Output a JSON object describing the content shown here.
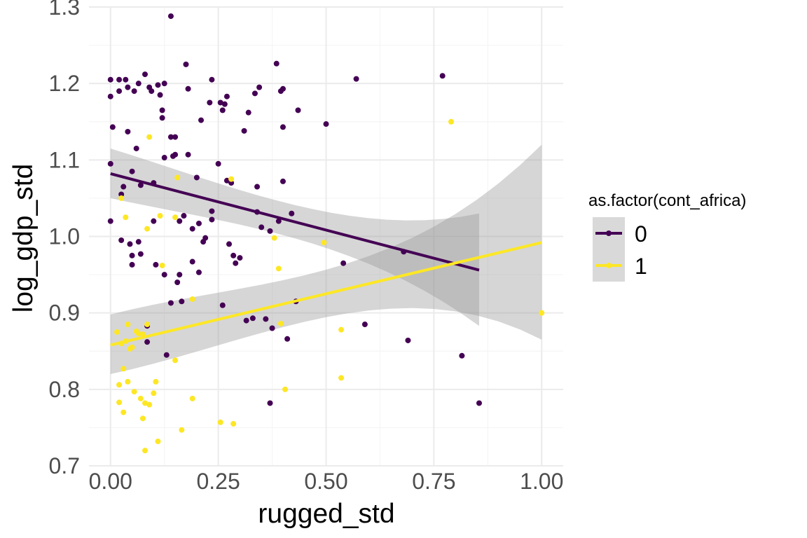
{
  "chart_data": {
    "type": "scatter",
    "xlabel": "rugged_std",
    "ylabel": "log_gdp_std",
    "xlim": [
      -0.05,
      1.05
    ],
    "ylim": [
      0.7,
      1.3
    ],
    "x_ticks": [
      0.0,
      0.25,
      0.5,
      0.75,
      1.0
    ],
    "x_tick_labels": [
      "0.00",
      "0.25",
      "0.50",
      "0.75",
      "1.00"
    ],
    "y_ticks": [
      0.7,
      0.8,
      0.9,
      1.0,
      1.1,
      1.2,
      1.3
    ],
    "y_tick_labels": [
      "0.7",
      "0.8",
      "0.9",
      "1.0",
      "1.1",
      "1.2",
      "1.3"
    ],
    "grid": true,
    "legend": {
      "title": "as.factor(cont_africa)",
      "position": "right"
    },
    "series": [
      {
        "name": "0",
        "color": "#440154",
        "points": [
          [
            0.0,
            1.205
          ],
          [
            0.0,
            1.183
          ],
          [
            0.0,
            1.095
          ],
          [
            0.0,
            1.02
          ],
          [
            0.005,
            1.143
          ],
          [
            0.02,
            1.205
          ],
          [
            0.02,
            1.19
          ],
          [
            0.025,
            1.055
          ],
          [
            0.025,
            0.995
          ],
          [
            0.03,
            1.065
          ],
          [
            0.035,
            1.205
          ],
          [
            0.04,
            1.137
          ],
          [
            0.04,
            1.195
          ],
          [
            0.045,
            0.99
          ],
          [
            0.05,
            1.085
          ],
          [
            0.05,
            0.975
          ],
          [
            0.05,
            0.963
          ],
          [
            0.055,
            1.19
          ],
          [
            0.06,
            1.115
          ],
          [
            0.065,
            1.2
          ],
          [
            0.065,
            0.993
          ],
          [
            0.07,
            0.977
          ],
          [
            0.07,
            1.067
          ],
          [
            0.08,
            1.212
          ],
          [
            0.085,
            0.883
          ],
          [
            0.085,
            0.862
          ],
          [
            0.09,
            1.195
          ],
          [
            0.095,
            1.19
          ],
          [
            0.1,
            1.07
          ],
          [
            0.1,
            1.02
          ],
          [
            0.105,
            0.963
          ],
          [
            0.11,
            1.198
          ],
          [
            0.115,
            1.185
          ],
          [
            0.12,
            1.155
          ],
          [
            0.12,
            1.165
          ],
          [
            0.125,
            1.2
          ],
          [
            0.125,
            1.103
          ],
          [
            0.125,
            0.95
          ],
          [
            0.13,
            0.845
          ],
          [
            0.14,
            1.288
          ],
          [
            0.14,
            1.13
          ],
          [
            0.14,
            0.913
          ],
          [
            0.145,
            1.105
          ],
          [
            0.15,
            1.13
          ],
          [
            0.15,
            1.107
          ],
          [
            0.155,
            0.94
          ],
          [
            0.16,
            1.02
          ],
          [
            0.16,
            0.95
          ],
          [
            0.165,
            0.915
          ],
          [
            0.17,
            1.027
          ],
          [
            0.175,
            1.225
          ],
          [
            0.18,
            1.193
          ],
          [
            0.18,
            1.107
          ],
          [
            0.19,
            1.01
          ],
          [
            0.19,
            0.967
          ],
          [
            0.2,
            1.077
          ],
          [
            0.205,
            0.953
          ],
          [
            0.205,
            1.017
          ],
          [
            0.21,
            1.152
          ],
          [
            0.215,
            0.993
          ],
          [
            0.22,
            0.998
          ],
          [
            0.23,
            1.175
          ],
          [
            0.235,
            1.205
          ],
          [
            0.235,
            1.033
          ],
          [
            0.235,
            1.022
          ],
          [
            0.25,
            1.095
          ],
          [
            0.255,
            1.175
          ],
          [
            0.26,
            0.91
          ],
          [
            0.26,
            1.165
          ],
          [
            0.265,
            1.173
          ],
          [
            0.27,
            1.183
          ],
          [
            0.27,
            1.073
          ],
          [
            0.275,
            0.99
          ],
          [
            0.28,
            1.07
          ],
          [
            0.285,
            0.975
          ],
          [
            0.29,
            0.965
          ],
          [
            0.3,
            0.972
          ],
          [
            0.31,
            1.138
          ],
          [
            0.315,
            0.89
          ],
          [
            0.32,
            1.162
          ],
          [
            0.33,
            0.893
          ],
          [
            0.335,
            1.187
          ],
          [
            0.34,
            1.065
          ],
          [
            0.34,
            1.032
          ],
          [
            0.345,
            1.195
          ],
          [
            0.35,
            1.012
          ],
          [
            0.36,
            0.892
          ],
          [
            0.37,
            0.782
          ],
          [
            0.37,
            1.007
          ],
          [
            0.375,
            0.88
          ],
          [
            0.385,
            1.226
          ],
          [
            0.39,
            1.02
          ],
          [
            0.395,
            1.19
          ],
          [
            0.4,
            1.193
          ],
          [
            0.4,
            1.143
          ],
          [
            0.4,
            1.072
          ],
          [
            0.41,
            0.866
          ],
          [
            0.42,
            1.03
          ],
          [
            0.43,
            0.915
          ],
          [
            0.435,
            1.165
          ],
          [
            0.5,
            1.147
          ],
          [
            0.54,
            0.965
          ],
          [
            0.57,
            1.206
          ],
          [
            0.59,
            0.885
          ],
          [
            0.68,
            0.98
          ],
          [
            0.69,
            0.864
          ],
          [
            0.77,
            1.21
          ],
          [
            0.815,
            0.844
          ],
          [
            0.855,
            0.782
          ]
        ],
        "fit": {
          "x": [
            0.0,
            0.855
          ],
          "y": [
            1.082,
            0.956
          ],
          "band_lo": [
            1.05,
            0.883
          ],
          "band_hi": [
            1.115,
            1.03
          ]
        }
      },
      {
        "name": "1",
        "color": "#fde725",
        "points": [
          [
            0.015,
            0.875
          ],
          [
            0.02,
            0.806
          ],
          [
            0.02,
            0.783
          ],
          [
            0.025,
            0.86
          ],
          [
            0.025,
            1.05
          ],
          [
            0.03,
            0.77
          ],
          [
            0.03,
            0.827
          ],
          [
            0.035,
            0.863
          ],
          [
            0.035,
            1.025
          ],
          [
            0.04,
            0.81
          ],
          [
            0.04,
            0.885
          ],
          [
            0.045,
            0.853
          ],
          [
            0.05,
            0.855
          ],
          [
            0.055,
            0.797
          ],
          [
            0.06,
            0.876
          ],
          [
            0.065,
            0.873
          ],
          [
            0.07,
            0.788
          ],
          [
            0.075,
            0.762
          ],
          [
            0.075,
            0.872
          ],
          [
            0.08,
            0.782
          ],
          [
            0.08,
            0.72
          ],
          [
            0.085,
            0.885
          ],
          [
            0.085,
            1.01
          ],
          [
            0.09,
            0.78
          ],
          [
            0.09,
            1.13
          ],
          [
            0.1,
            0.795
          ],
          [
            0.105,
            0.81
          ],
          [
            0.11,
            0.732
          ],
          [
            0.115,
            1.027
          ],
          [
            0.12,
            0.962
          ],
          [
            0.15,
            0.838
          ],
          [
            0.15,
            1.025
          ],
          [
            0.155,
            1.077
          ],
          [
            0.165,
            0.747
          ],
          [
            0.19,
            0.788
          ],
          [
            0.19,
            0.918
          ],
          [
            0.255,
            0.757
          ],
          [
            0.285,
            0.755
          ],
          [
            0.28,
            1.075
          ],
          [
            0.38,
            0.998
          ],
          [
            0.39,
            0.958
          ],
          [
            0.395,
            0.886
          ],
          [
            0.405,
            0.8
          ],
          [
            0.495,
            0.992
          ],
          [
            0.535,
            0.815
          ],
          [
            0.535,
            0.878
          ],
          [
            0.79,
            1.15
          ],
          [
            1.0,
            0.9
          ]
        ],
        "fit": {
          "x": [
            0.0,
            1.0
          ],
          "y": [
            0.858,
            0.992
          ],
          "band_lo": [
            0.82,
            0.865
          ],
          "band_hi": [
            0.898,
            1.12
          ]
        }
      }
    ]
  }
}
